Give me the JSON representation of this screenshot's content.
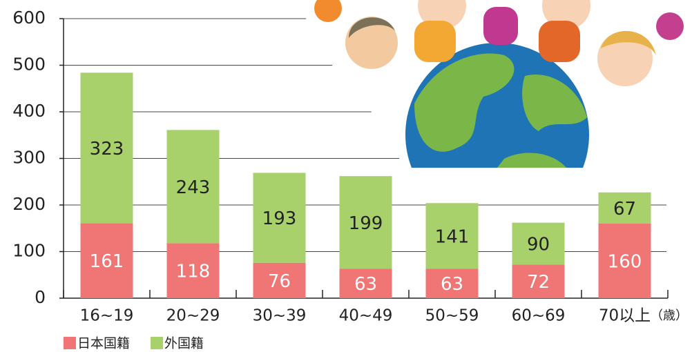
{
  "chart_data": {
    "type": "stacked_bar",
    "categories": [
      "16~19",
      "20~29",
      "30~39",
      "40~49",
      "50~59",
      "60~69",
      "70以上"
    ],
    "x_label": "（歳）",
    "series": [
      {
        "name": "日本国籍",
        "color": "#f07575",
        "values": [
          161,
          118,
          76,
          63,
          63,
          72,
          160
        ]
      },
      {
        "name": "外国籍",
        "color": "#a9d16b",
        "values": [
          323,
          243,
          193,
          199,
          141,
          90,
          67
        ]
      }
    ],
    "ylim": [
      0,
      600
    ],
    "yticks": [
      0,
      100,
      200,
      300,
      400,
      500,
      600
    ],
    "grid": true
  }
}
